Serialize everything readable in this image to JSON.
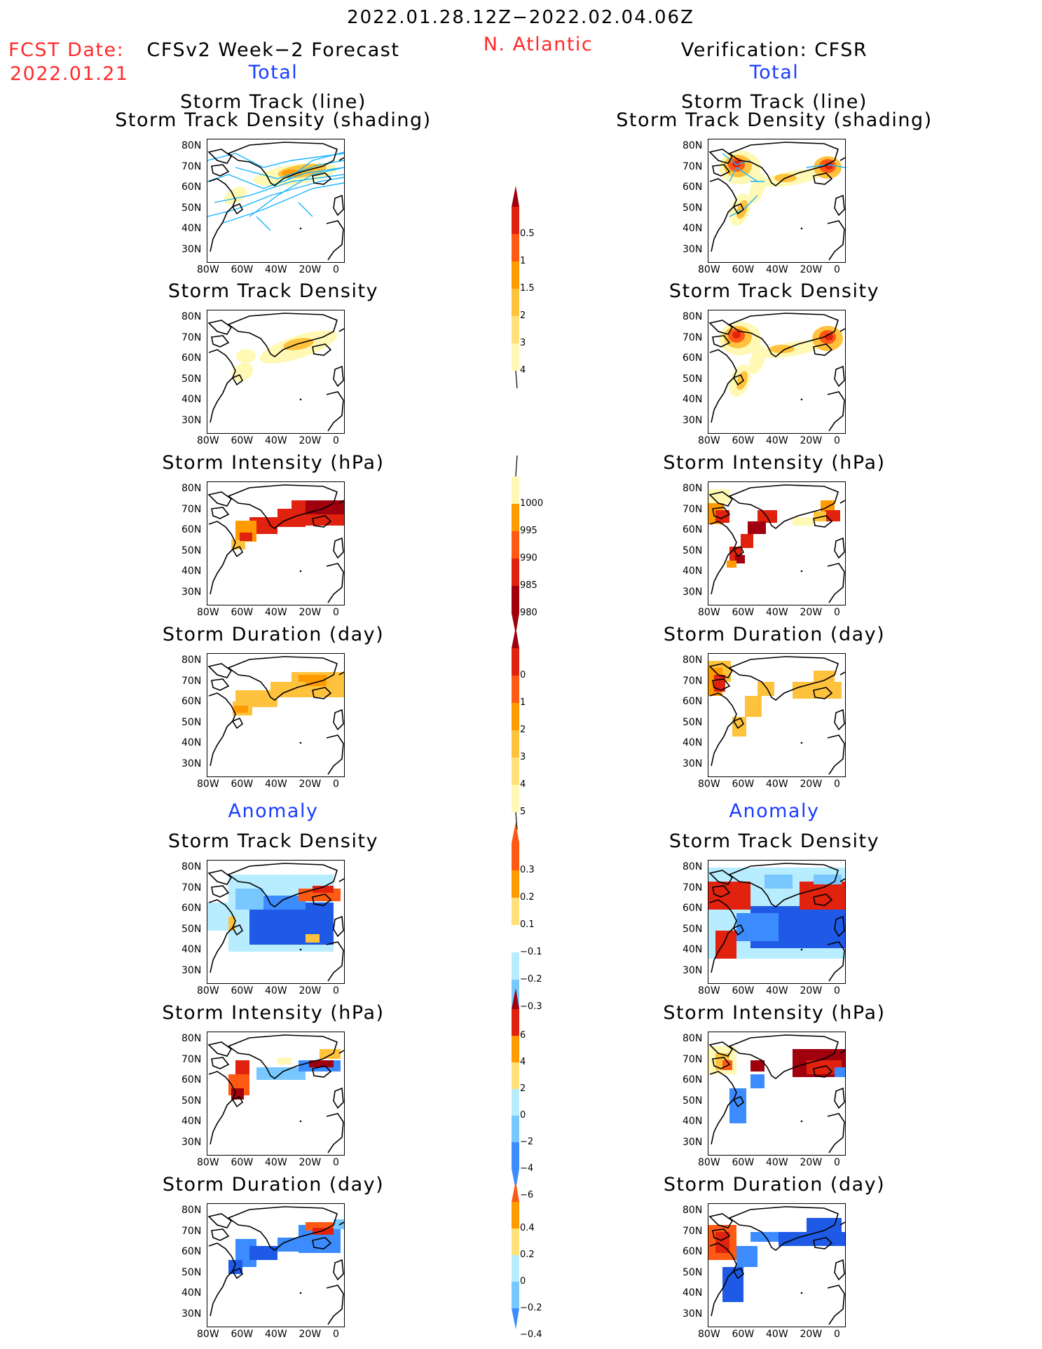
{
  "header": {
    "period": "2022.01.28.12Z−2022.02.04.06Z",
    "fcst_label": "FCST Date:",
    "fcst_date": "2022.01.21",
    "region": "N. Atlantic",
    "left_title": "CFSv2 Week−2 Forecast",
    "right_title": "Verification: CFSR",
    "left_section_total": "Total",
    "right_section_total": "Total",
    "left_section_anomaly": "Anomaly",
    "right_section_anomaly": "Anomaly"
  },
  "panel_titles": {
    "track_line": "Storm Track (line)",
    "track_density_shading": "Storm Track Density (shading)",
    "track_density": "Storm Track Density",
    "intensity": "Storm Intensity (hPa)",
    "duration": "Storm Duration (day)"
  },
  "axes": {
    "lon_ticks": [
      "80W",
      "60W",
      "40W",
      "20W",
      "0"
    ],
    "lat_ticks": [
      "80N",
      "70N",
      "60N",
      "50N",
      "40N",
      "30N"
    ]
  },
  "colorbars": {
    "density_total": [
      "0.5",
      "1",
      "1.5",
      "2",
      "3",
      "4"
    ],
    "intensity_total": [
      "1000",
      "995",
      "990",
      "985",
      "980"
    ],
    "duration_total": [
      "0",
      "1",
      "2",
      "3",
      "4",
      "5"
    ],
    "density_anom": [
      "0.3",
      "0.2",
      "0.1",
      "−0.1",
      "−0.2",
      "−0.3"
    ],
    "intensity_anom": [
      "6",
      "4",
      "2",
      "0",
      "−2",
      "−4",
      "−6"
    ],
    "duration_anom": [
      "0.4",
      "0.2",
      "0",
      "−0.2",
      "−0.4"
    ]
  },
  "colors": {
    "cream": "#fff9b5",
    "lightyellow": "#ffe07a",
    "gold": "#ffc23c",
    "orange": "#ff9a00",
    "redorange": "#ff5a14",
    "red": "#e0220e",
    "darkred": "#a0000e",
    "lightblue": "#b8ecff",
    "skyblue": "#78c8ff",
    "blue": "#3c8cff",
    "darkblue": "#1e5ae6",
    "track_cyan": "#19b4ff"
  }
}
